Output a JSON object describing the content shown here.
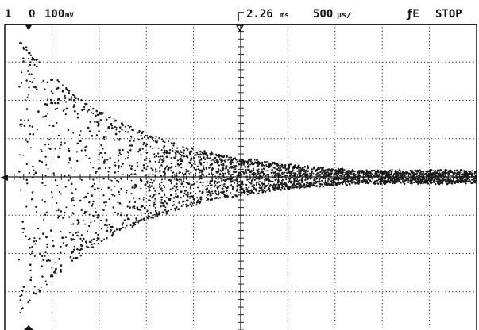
{
  "status": {
    "channel": "1",
    "coupling_symbol": "Ω",
    "volts_per_div": "100",
    "volts_unit": "mV",
    "trigger_delay": "2.26",
    "delay_unit": "ms",
    "time_per_div": "500",
    "time_unit": "µs/",
    "trigger_source": "ƒE",
    "run_state": "STOP"
  },
  "screen": {
    "divisions_x": 10,
    "divisions_y": 8,
    "grid_style": "dotted",
    "trace_color": "#1a1a1a",
    "grid_color": "#222222",
    "background": "#ffffff"
  },
  "chart_data": {
    "type": "scatter",
    "description_of_signal": "",
    "x_divisions": 10,
    "y_divisions": 8,
    "signal": {
      "shape": "damped oscillation",
      "center_y_div": 4.0,
      "initial_amplitude_div": 3.6,
      "start_x_div": 0.3,
      "decay_constant_div": 2.3,
      "final_amplitude_div": 0.15
    }
  }
}
